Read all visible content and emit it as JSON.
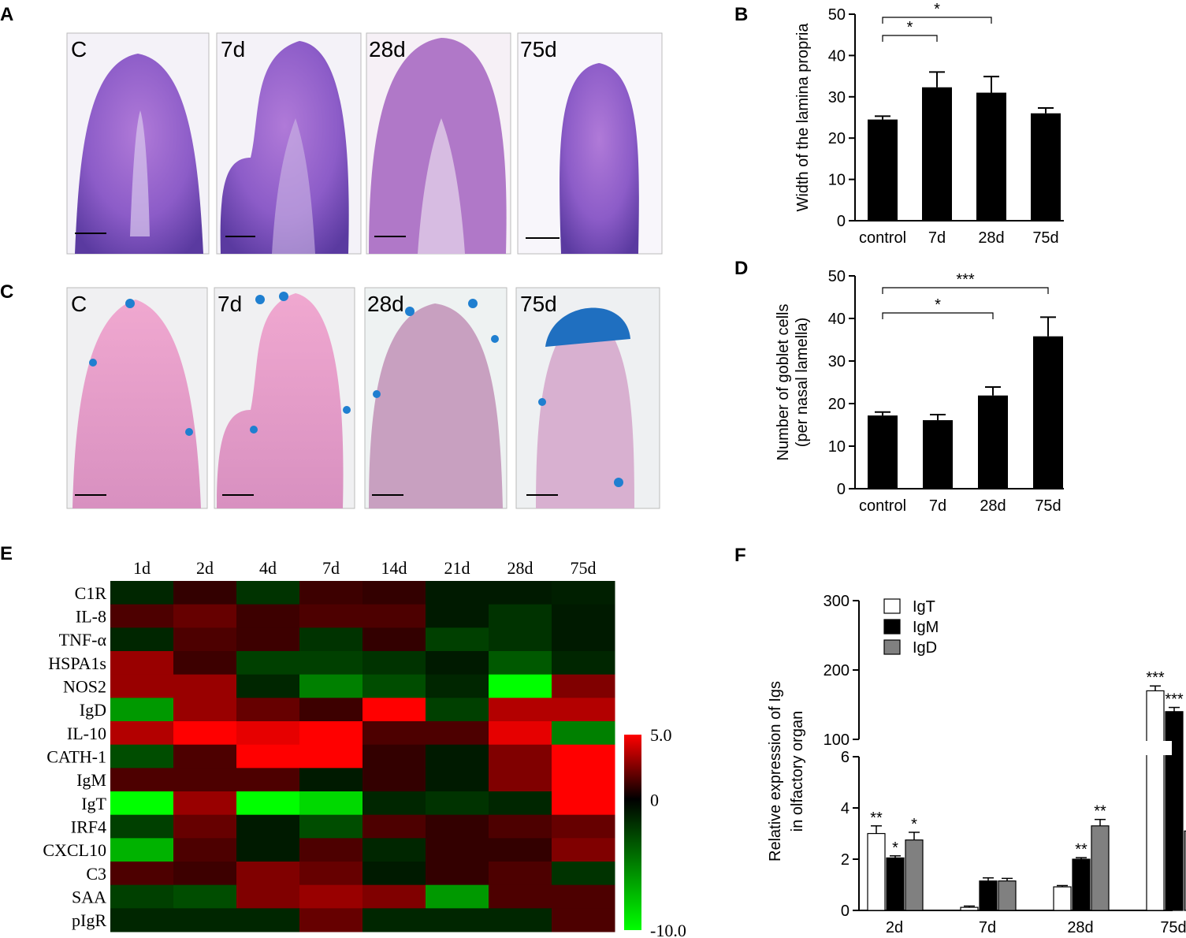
{
  "panels": {
    "A": "A",
    "B": "B",
    "C": "C",
    "D": "D",
    "E": "E",
    "F": "F"
  },
  "photos_A": [
    "C",
    "7d",
    "28d",
    "75d"
  ],
  "photos_C": [
    "C",
    "7d",
    "28d",
    "75d"
  ],
  "colors": {
    "he_stain": "#8c5cc8",
    "ab_pas_stain": "#e8a0c8",
    "goblet_blue": "#1f7fd0",
    "bar_black": "#000000",
    "bar_grey": "#808080",
    "heat_red": "#ff0000",
    "heat_green": "#00ff00"
  },
  "chart_data": [
    {
      "id": "B",
      "type": "bar",
      "categories": [
        "control",
        "7d",
        "28d",
        "75d"
      ],
      "values": [
        24.5,
        32.3,
        31.0,
        26.0
      ],
      "errors": [
        0.8,
        3.7,
        3.9,
        1.3
      ],
      "ylabel": "Width of the lamina propria",
      "ylim": [
        0,
        50
      ],
      "yticks": [
        0,
        10,
        20,
        30,
        40,
        50
      ],
      "significance": [
        {
          "from": 0,
          "to": 1,
          "label": "*"
        },
        {
          "from": 0,
          "to": 2,
          "label": "*"
        }
      ]
    },
    {
      "id": "D",
      "type": "bar",
      "categories": [
        "control",
        "7d",
        "28d",
        "75d"
      ],
      "values": [
        17.2,
        16.1,
        21.9,
        35.8
      ],
      "errors": [
        0.8,
        1.3,
        2.0,
        4.5
      ],
      "ylabel_lines": [
        "Number of goblet cells",
        "(per nasal lamella)"
      ],
      "ylim": [
        0,
        50
      ],
      "yticks": [
        0,
        10,
        20,
        30,
        40,
        50
      ],
      "significance": [
        {
          "from": 0,
          "to": 2,
          "label": "*"
        },
        {
          "from": 0,
          "to": 3,
          "label": "***"
        }
      ]
    },
    {
      "id": "E",
      "type": "heatmap",
      "columns": [
        "1d",
        "2d",
        "4d",
        "7d",
        "14d",
        "21d",
        "28d",
        "75d"
      ],
      "rows": [
        "C1R",
        "IL-8",
        "TNF-α",
        "HSPA1s",
        "NOS2",
        "IgD",
        "IL-10",
        "CATH-1",
        "IgM",
        "IgT",
        "IRF4",
        "CXCL10",
        "C3",
        "SAA",
        "pIgR"
      ],
      "values": [
        [
          -1.5,
          1.0,
          -2.0,
          1.2,
          1.0,
          -1.0,
          -1.0,
          -1.2
        ],
        [
          1.5,
          2.0,
          1.2,
          1.5,
          1.5,
          -1.0,
          -2.0,
          -1.0
        ],
        [
          -1.5,
          1.5,
          1.2,
          -2.0,
          1.0,
          -2.5,
          -2.0,
          -1.0
        ],
        [
          3.0,
          1.2,
          -2.5,
          -2.5,
          -2.0,
          -1.0,
          -3.5,
          -1.5
        ],
        [
          3.0,
          3.0,
          -1.5,
          -5.0,
          -3.0,
          -1.5,
          -10.0,
          2.5
        ],
        [
          -6.0,
          3.0,
          2.0,
          1.2,
          5.0,
          -2.5,
          3.5,
          3.5
        ],
        [
          3.5,
          5.0,
          4.5,
          5.0,
          1.5,
          1.5,
          4.5,
          -5.0
        ],
        [
          -3.0,
          1.5,
          5.0,
          5.0,
          1.0,
          -1.0,
          2.5,
          5.0
        ],
        [
          1.5,
          1.5,
          1.5,
          -1.0,
          1.0,
          -1.0,
          2.5,
          5.0
        ],
        [
          -10.0,
          3.0,
          -10.0,
          -8.5,
          -1.5,
          -2.0,
          -1.5,
          5.0
        ],
        [
          -2.5,
          2.0,
          -1.0,
          -3.0,
          1.5,
          1.0,
          1.5,
          2.0
        ],
        [
          -7.0,
          1.5,
          -1.0,
          1.5,
          -1.5,
          1.0,
          1.0,
          2.5
        ],
        [
          1.5,
          1.2,
          2.5,
          2.0,
          -1.0,
          1.0,
          1.5,
          -2.0
        ],
        [
          -2.5,
          -3.0,
          2.5,
          3.0,
          2.5,
          -6.0,
          1.5,
          1.5
        ],
        [
          -1.5,
          -1.5,
          -1.5,
          2.0,
          -1.5,
          -1.5,
          -1.5,
          1.5
        ]
      ],
      "colorbar_ticks": [
        "5.0",
        "0",
        "-10.0"
      ],
      "range": [
        -10,
        5
      ]
    },
    {
      "id": "F",
      "type": "bar",
      "categories": [
        "2d",
        "7d",
        "28d",
        "75d"
      ],
      "series": [
        {
          "name": "IgT",
          "values": [
            3.0,
            0.12,
            0.92,
            170
          ],
          "errors": [
            0.3,
            0.05,
            0.05,
            7
          ],
          "color": "#ffffff",
          "stars": [
            "**",
            "",
            "",
            "***"
          ]
        },
        {
          "name": "IgM",
          "values": [
            2.05,
            1.15,
            2.0,
            140
          ],
          "errors": [
            0.08,
            0.12,
            0.06,
            6
          ],
          "color": "#000000",
          "stars": [
            "*",
            "",
            "**",
            "***"
          ]
        },
        {
          "name": "IgD",
          "values": [
            2.75,
            1.15,
            3.3,
            3.1
          ],
          "errors": [
            0.3,
            0.1,
            0.25,
            0.35
          ],
          "color": "#808080",
          "stars": [
            "*",
            "",
            "**",
            "*"
          ]
        }
      ],
      "ylabel_lines": [
        "Relative expression of Igs",
        "in olfactory organ"
      ],
      "ylim_lower": [
        0,
        6
      ],
      "ylim_upper": [
        100,
        300
      ],
      "yticks_lower": [
        "0",
        "2",
        "4",
        "6"
      ],
      "yticks_upper": [
        "100",
        "200",
        "300"
      ]
    }
  ]
}
